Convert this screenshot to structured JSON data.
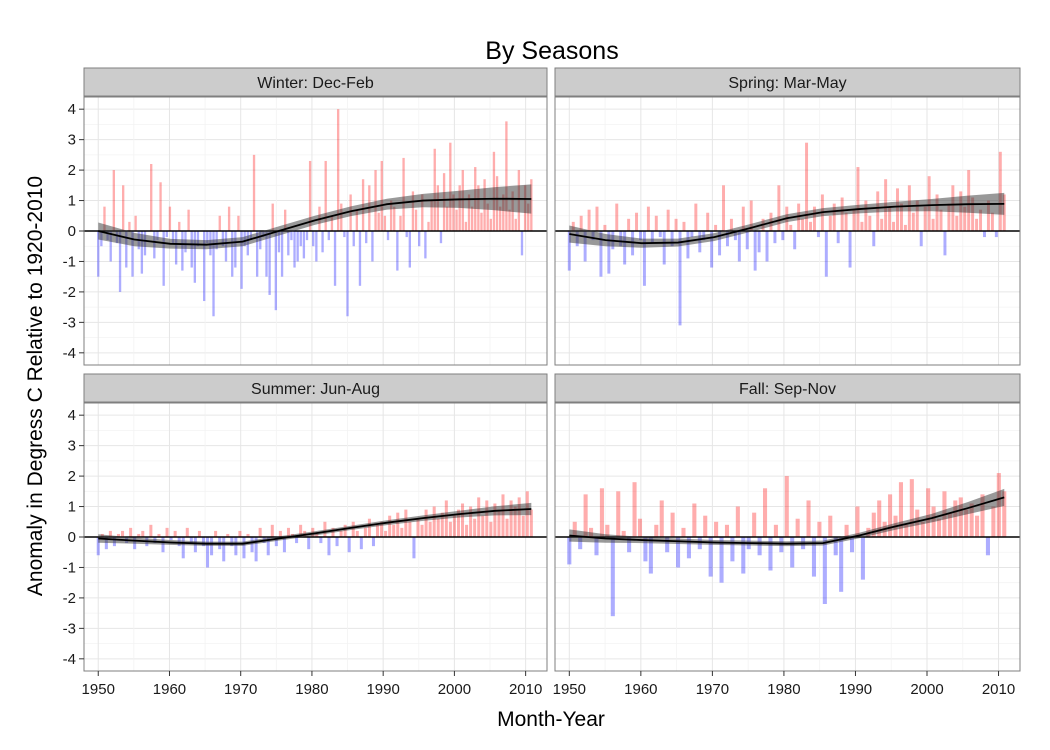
{
  "chart_data": {
    "type": "bar",
    "title": "By Seasons",
    "xlabel": "Month-Year",
    "ylabel": "Anomaly in Degress C Relative to 1920-2010",
    "xlim": [
      1948,
      2013
    ],
    "ylim": [
      -4.4,
      4.4
    ],
    "x_ticks": [
      1950,
      1960,
      1970,
      1980,
      1990,
      2000,
      2010
    ],
    "y_ticks": [
      -4,
      -3,
      -2,
      -1,
      0,
      1,
      2,
      3,
      4
    ],
    "grid": true,
    "legend": "none",
    "colors": {
      "positive": "#ff0000",
      "negative": "#0000ff",
      "smooth_line": "#000000",
      "smooth_band": "#333333",
      "strip_bg": "#cccccc",
      "panel_border": "#7f7f7f",
      "grid": "#ebebeb"
    },
    "facets": [
      {
        "label": "Winter: Dec-Feb",
        "series": [
          {
            "values": [
              -1.5,
              -0.5,
              0.8,
              -0.3,
              -1.0,
              2.0,
              -0.4,
              -2.0,
              1.5,
              -1.2,
              0.3,
              -1.5,
              0.5,
              -0.6,
              -1.4,
              -0.8,
              0.0,
              2.2,
              -0.9,
              -0.3,
              1.6,
              -1.8,
              -0.2,
              0.8,
              -0.4,
              -1.1,
              0.3,
              -1.3,
              -0.7,
              0.7,
              -1.2,
              -1.7,
              -0.5,
              0.0,
              -2.3,
              -0.4,
              -0.8,
              -2.8,
              -0.6,
              0.5,
              -0.5,
              -1.0,
              0.8,
              -1.5,
              -1.2,
              0.5,
              -1.9,
              -0.5,
              -0.8,
              -0.3,
              2.5,
              -1.5,
              -0.6,
              -0.2,
              -1.5,
              -2.1,
              0.9,
              -2.6,
              -0.7,
              -1.5,
              0.7,
              -0.8,
              -0.3,
              -1.2,
              -1.0,
              -0.5,
              -0.9,
              -0.3,
              2.3,
              -0.5,
              -1.0,
              0.8,
              -0.7,
              2.3,
              -0.3,
              0.5,
              -1.8,
              4.0,
              0.9,
              -0.2,
              -2.8,
              1.2,
              -0.5,
              0.7,
              -1.8,
              1.7,
              -0.4,
              1.5,
              -1.0,
              2.0,
              0.6,
              2.3,
              0.5,
              -0.3,
              1.0,
              0.8,
              -1.3,
              0.5,
              2.4,
              -0.2,
              -1.2,
              1.3,
              0.7,
              -0.5,
              1.2,
              -0.9,
              0.3,
              1.0,
              2.7,
              1.5,
              -0.4,
              1.9,
              0.8,
              2.9,
              1.2,
              0.7,
              1.5,
              2.0,
              0.3,
              1.2,
              0.8,
              2.1,
              1.5,
              0.6,
              1.7,
              0.9,
              0.4,
              2.6,
              1.8,
              0.8,
              1.2,
              3.6,
              0.7,
              1.3,
              0.4,
              2.0,
              -0.8,
              1.5,
              0.9,
              1.7
            ]
          },
          {
            "smooth": [
              0.0,
              -0.28,
              -0.42,
              -0.45,
              -0.35,
              0.0,
              0.35,
              0.65,
              0.88,
              1.0,
              1.04,
              1.06,
              1.05
            ],
            "band": [
              0.28,
              0.22,
              0.16,
              0.15,
              0.15,
              0.15,
              0.15,
              0.16,
              0.18,
              0.22,
              0.28,
              0.38,
              0.48
            ]
          }
        ]
      },
      {
        "label": "Spring: Mar-May",
        "series": [
          {
            "values": [
              -1.3,
              0.3,
              -0.5,
              0.5,
              -1.0,
              0.7,
              -0.3,
              0.8,
              -1.5,
              0.2,
              -1.4,
              -0.6,
              0.9,
              -0.5,
              -1.1,
              0.4,
              -0.8,
              0.6,
              -0.3,
              -1.8,
              0.8,
              -0.4,
              0.5,
              -0.2,
              -1.1,
              0.7,
              -0.5,
              0.4,
              -3.1,
              0.3,
              -0.9,
              -0.2,
              0.9,
              -0.7,
              -0.3,
              0.6,
              -1.2,
              0.2,
              -0.8,
              1.5,
              -0.5,
              0.4,
              -0.3,
              -1.0,
              0.8,
              -0.6,
              1.0,
              -1.3,
              -0.7,
              0.4,
              -1.0,
              0.6,
              -0.4,
              1.5,
              -0.3,
              0.8,
              0.2,
              -0.6,
              0.9,
              0.4,
              2.9,
              0.3,
              0.8,
              -0.2,
              1.2,
              -1.5,
              0.5,
              0.9,
              -0.4,
              1.1,
              0.6,
              -1.2,
              0.7,
              2.1,
              0.3,
              1.0,
              0.5,
              -0.5,
              1.3,
              0.4,
              1.7,
              0.8,
              0.3,
              1.4,
              0.9,
              0.2,
              1.5,
              0.6,
              1.0,
              -0.5,
              0.8,
              1.8,
              0.4,
              1.2,
              0.7,
              -0.8,
              0.9,
              1.5,
              0.5,
              1.3,
              0.8,
              2.0,
              1.1,
              0.4,
              0.7,
              -0.2,
              1.0,
              0.6,
              -0.2,
              2.6,
              1.2
            ]
          },
          {
            "smooth": [
              -0.1,
              -0.3,
              -0.4,
              -0.38,
              -0.2,
              0.1,
              0.42,
              0.62,
              0.72,
              0.8,
              0.85,
              0.88,
              0.89
            ],
            "band": [
              0.28,
              0.2,
              0.15,
              0.13,
              0.13,
              0.13,
              0.13,
              0.13,
              0.14,
              0.16,
              0.2,
              0.28,
              0.36
            ]
          }
        ]
      },
      {
        "label": "Summer: Jun-Aug",
        "series": [
          {
            "values": [
              -0.6,
              0.1,
              -0.4,
              0.2,
              -0.3,
              0.1,
              0.2,
              -0.2,
              0.3,
              -0.4,
              0.1,
              0.2,
              -0.3,
              0.4,
              -0.2,
              0.1,
              -0.5,
              0.3,
              -0.1,
              0.2,
              -0.3,
              -0.7,
              0.3,
              -0.2,
              -0.5,
              0.2,
              -0.3,
              -1.0,
              -0.6,
              0.2,
              -0.4,
              -0.8,
              0.1,
              -0.3,
              -0.6,
              0.2,
              -0.7,
              0.1,
              -0.5,
              -0.8,
              0.3,
              -0.2,
              -0.6,
              0.4,
              -0.3,
              0.2,
              -0.5,
              0.3,
              0.1,
              -0.2,
              0.4,
              0.2,
              -0.4,
              0.3,
              0.1,
              -0.2,
              0.5,
              -0.6,
              0.3,
              -0.3,
              0.2,
              0.4,
              -0.5,
              0.5,
              0.2,
              -0.4,
              0.3,
              0.6,
              -0.3,
              0.4,
              0.5,
              0.2,
              0.7,
              0.4,
              0.8,
              0.3,
              0.9,
              0.5,
              -0.7,
              0.6,
              0.4,
              0.9,
              0.5,
              1.0,
              0.6,
              0.8,
              1.2,
              0.5,
              0.7,
              0.9,
              1.1,
              0.4,
              1.0,
              0.6,
              1.3,
              0.7,
              1.2,
              0.5,
              1.1,
              0.9,
              1.4,
              0.6,
              1.2,
              1.0,
              1.3,
              0.7,
              1.5,
              0.9
            ]
          },
          {
            "smooth": [
              -0.05,
              -0.12,
              -0.18,
              -0.22,
              -0.22,
              -0.05,
              0.12,
              0.3,
              0.47,
              0.62,
              0.75,
              0.86,
              0.92
            ],
            "band": [
              0.14,
              0.1,
              0.08,
              0.07,
              0.07,
              0.07,
              0.07,
              0.07,
              0.08,
              0.09,
              0.11,
              0.15,
              0.2
            ]
          }
        ]
      },
      {
        "label": "Fall: Sep-Nov",
        "series": [
          {
            "values": [
              -0.9,
              0.5,
              -0.4,
              1.4,
              0.3,
              -0.6,
              1.6,
              0.4,
              -2.6,
              1.5,
              0.2,
              -0.5,
              1.8,
              0.6,
              -0.8,
              -1.2,
              0.4,
              1.2,
              -0.5,
              0.8,
              -1.0,
              0.3,
              -0.7,
              1.1,
              -0.4,
              0.7,
              -1.3,
              0.5,
              -1.5,
              0.4,
              -0.8,
              1.0,
              -1.2,
              -0.4,
              0.8,
              -0.6,
              1.6,
              -1.1,
              0.4,
              -0.5,
              2.0,
              -1.0,
              0.6,
              -0.4,
              1.2,
              -1.3,
              0.5,
              -2.2,
              0.7,
              -0.6,
              -1.8,
              0.4,
              -0.5,
              1.0,
              -1.4,
              0.3,
              0.8,
              1.2,
              0.5,
              1.4,
              0.7,
              1.8,
              0.4,
              1.9,
              0.9,
              0.5,
              1.6,
              1.0,
              0.6,
              1.5,
              0.8,
              1.2,
              1.3,
              0.9,
              1.1,
              0.7,
              1.4,
              -0.6,
              1.0,
              2.1,
              1.5
            ]
          },
          {
            "smooth": [
              0.05,
              -0.05,
              -0.1,
              -0.14,
              -0.18,
              -0.2,
              -0.22,
              -0.2,
              0.05,
              0.35,
              0.62,
              0.95,
              1.3
            ],
            "band": [
              0.2,
              0.14,
              0.1,
              0.09,
              0.08,
              0.08,
              0.08,
              0.08,
              0.09,
              0.11,
              0.14,
              0.2,
              0.28
            ]
          }
        ]
      }
    ]
  }
}
